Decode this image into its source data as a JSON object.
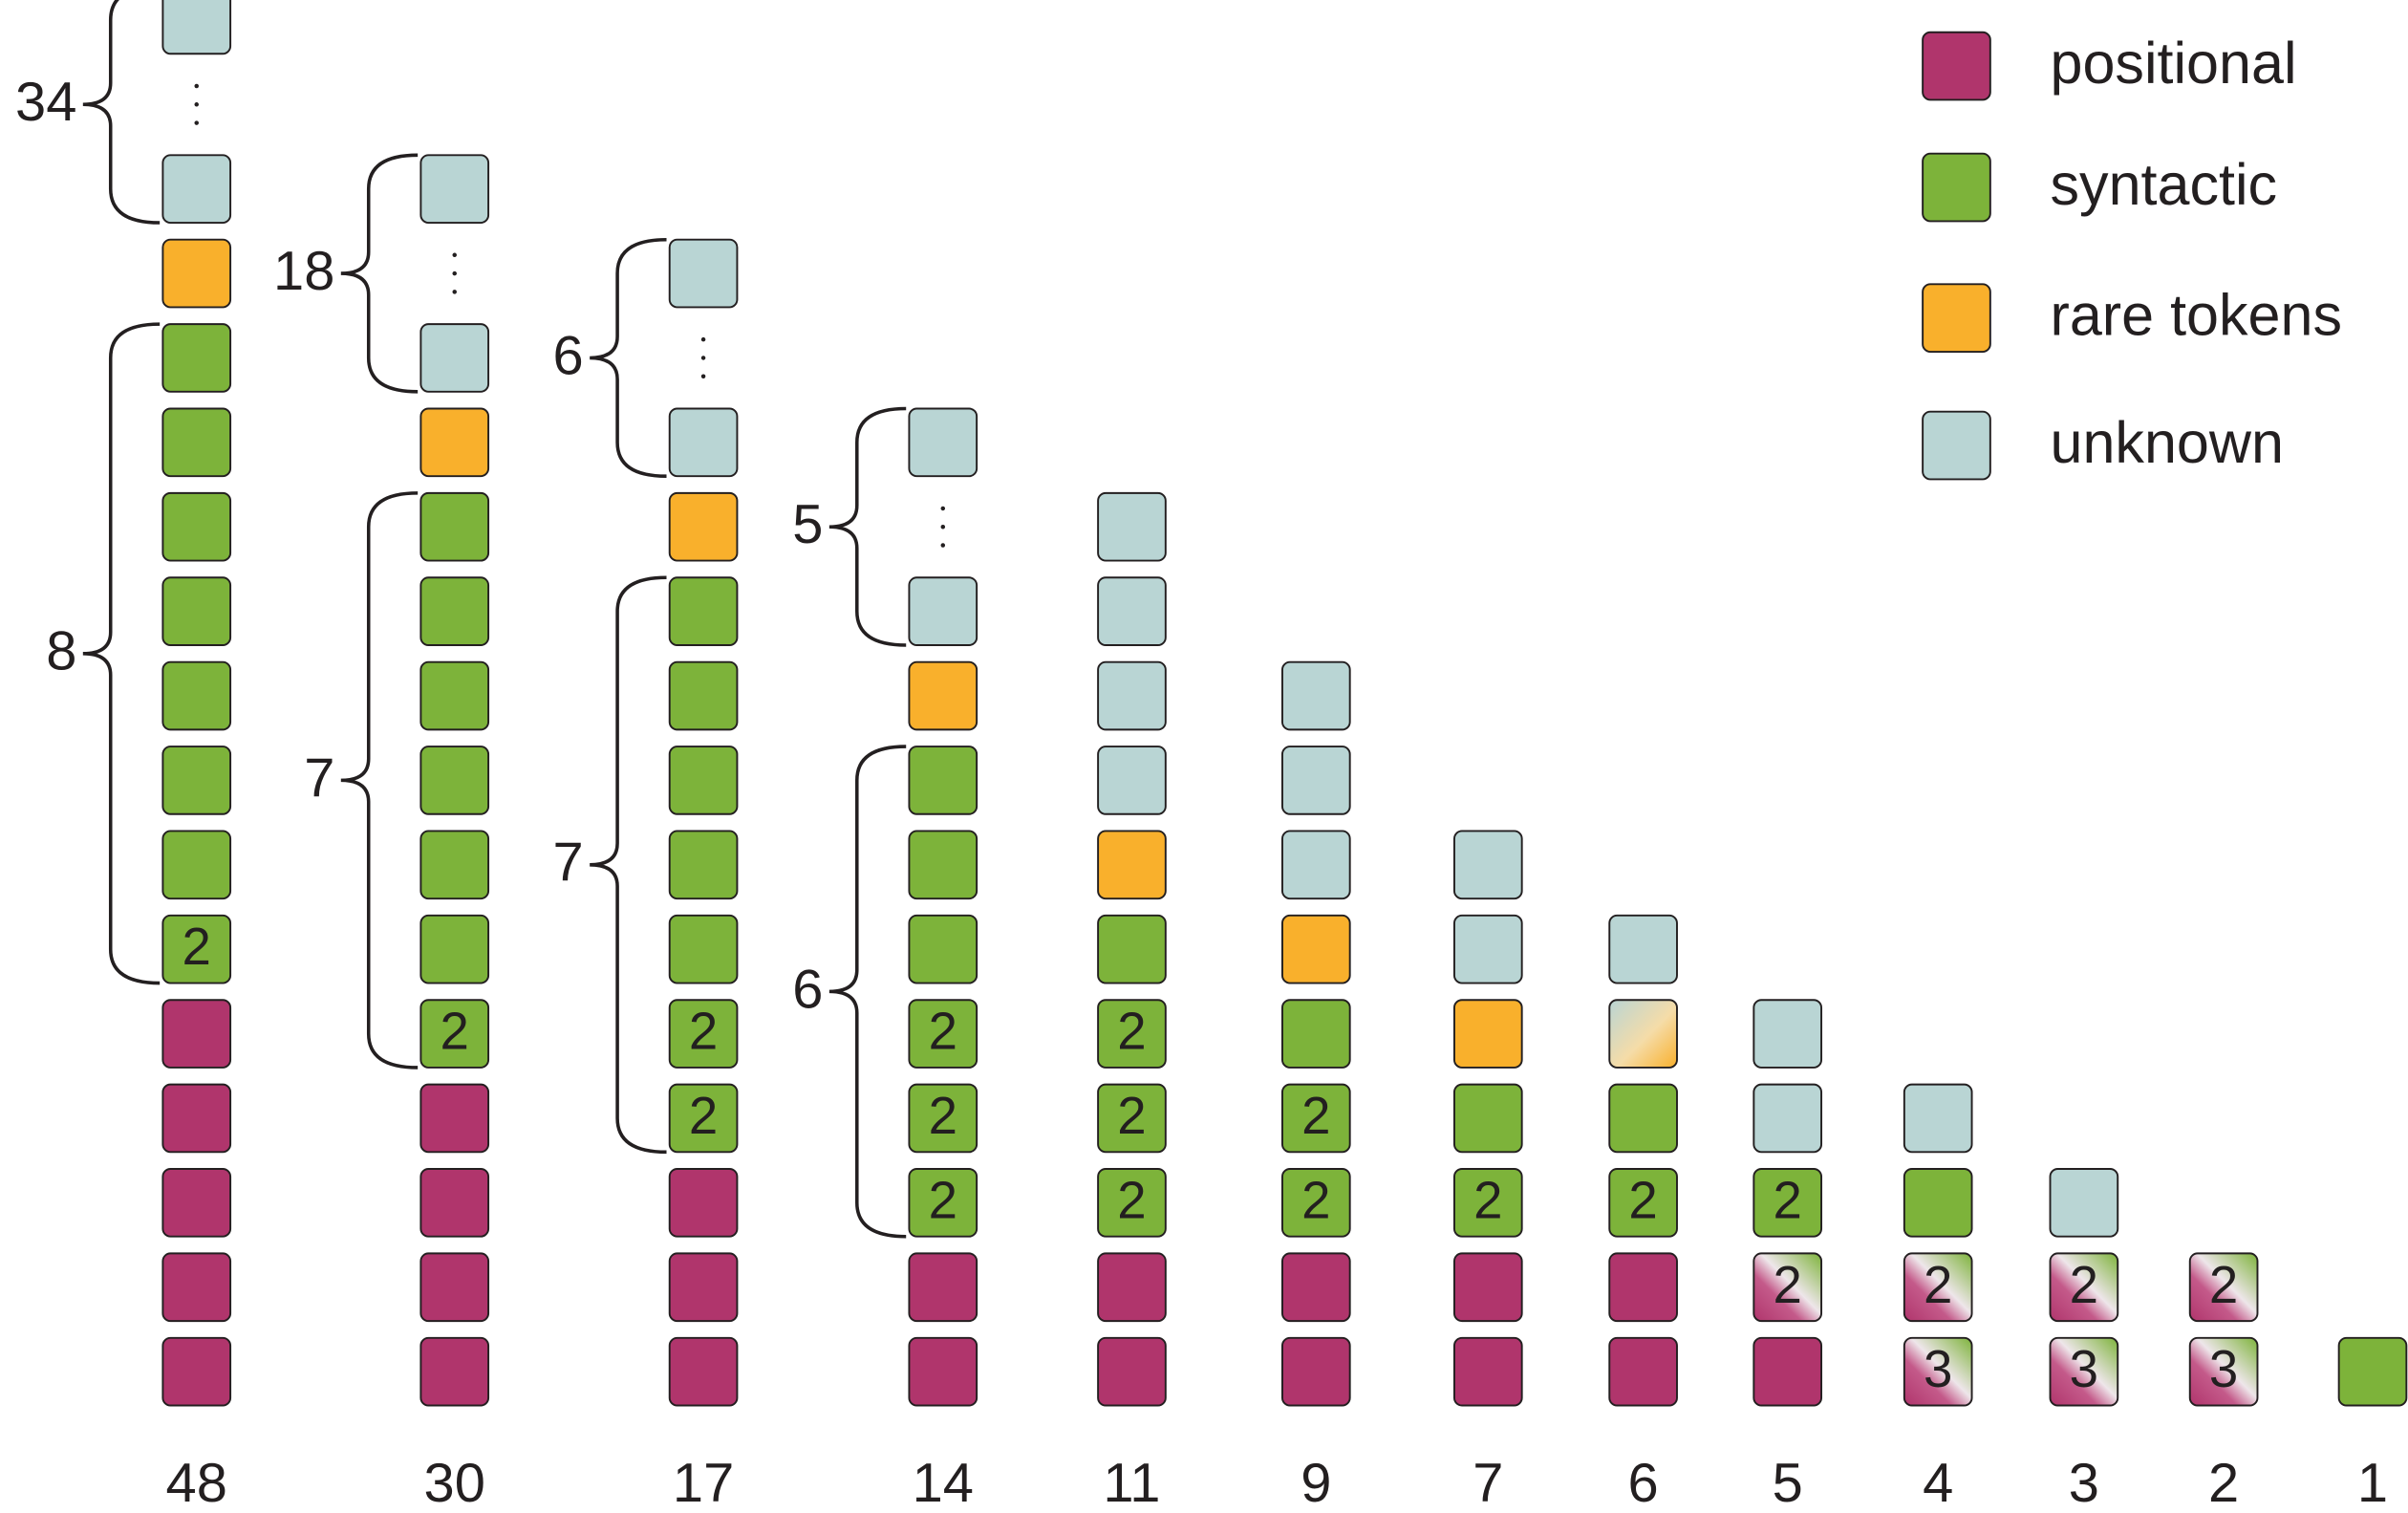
{
  "legend": [
    {
      "label": "positional",
      "type": "positional"
    },
    {
      "label": "syntactic",
      "type": "syntactic"
    },
    {
      "label": "rare tokens",
      "type": "rare"
    },
    {
      "label": "unknown",
      "type": "unknown"
    }
  ],
  "colors": {
    "positional": "#b0356c",
    "syntactic": "#7db33a",
    "rare": "#f9b02c",
    "unknown": "#b9d5d4"
  },
  "columns": [
    {
      "label": "48",
      "cells": [
        {
          "type": "positional"
        },
        {
          "type": "positional"
        },
        {
          "type": "positional"
        },
        {
          "type": "positional"
        },
        {
          "type": "positional"
        },
        {
          "type": "syntactic",
          "text": "2"
        },
        {
          "type": "syntactic"
        },
        {
          "type": "syntactic"
        },
        {
          "type": "syntactic"
        },
        {
          "type": "syntactic"
        },
        {
          "type": "syntactic"
        },
        {
          "type": "syntactic"
        },
        {
          "type": "syntactic"
        },
        {
          "type": "rare"
        },
        {
          "type": "unknown"
        },
        {
          "type": "ellipsis"
        },
        {
          "type": "unknown"
        }
      ],
      "braces": [
        {
          "label": "8",
          "from": 5,
          "to": 12
        },
        {
          "label": "34",
          "from": 14,
          "to": 16
        }
      ]
    },
    {
      "label": "30",
      "cells": [
        {
          "type": "positional"
        },
        {
          "type": "positional"
        },
        {
          "type": "positional"
        },
        {
          "type": "positional"
        },
        {
          "type": "syntactic",
          "text": "2"
        },
        {
          "type": "syntactic"
        },
        {
          "type": "syntactic"
        },
        {
          "type": "syntactic"
        },
        {
          "type": "syntactic"
        },
        {
          "type": "syntactic"
        },
        {
          "type": "syntactic"
        },
        {
          "type": "rare"
        },
        {
          "type": "unknown"
        },
        {
          "type": "ellipsis"
        },
        {
          "type": "unknown"
        }
      ],
      "braces": [
        {
          "label": "7",
          "from": 4,
          "to": 10
        },
        {
          "label": "18",
          "from": 12,
          "to": 14
        }
      ]
    },
    {
      "label": "17",
      "cells": [
        {
          "type": "positional"
        },
        {
          "type": "positional"
        },
        {
          "type": "positional"
        },
        {
          "type": "syntactic",
          "text": "2"
        },
        {
          "type": "syntactic",
          "text": "2"
        },
        {
          "type": "syntactic"
        },
        {
          "type": "syntactic"
        },
        {
          "type": "syntactic"
        },
        {
          "type": "syntactic"
        },
        {
          "type": "syntactic"
        },
        {
          "type": "rare"
        },
        {
          "type": "unknown"
        },
        {
          "type": "ellipsis"
        },
        {
          "type": "unknown"
        }
      ],
      "braces": [
        {
          "label": "7",
          "from": 3,
          "to": 9
        },
        {
          "label": "6",
          "from": 11,
          "to": 13
        }
      ]
    },
    {
      "label": "14",
      "cells": [
        {
          "type": "positional"
        },
        {
          "type": "positional"
        },
        {
          "type": "syntactic",
          "text": "2"
        },
        {
          "type": "syntactic",
          "text": "2"
        },
        {
          "type": "syntactic",
          "text": "2"
        },
        {
          "type": "syntactic"
        },
        {
          "type": "syntactic"
        },
        {
          "type": "syntactic"
        },
        {
          "type": "rare"
        },
        {
          "type": "unknown"
        },
        {
          "type": "ellipsis"
        },
        {
          "type": "unknown"
        }
      ],
      "braces": [
        {
          "label": "6",
          "from": 2,
          "to": 7
        },
        {
          "label": "5",
          "from": 9,
          "to": 11
        }
      ]
    },
    {
      "label": "11",
      "cells": [
        {
          "type": "positional"
        },
        {
          "type": "positional"
        },
        {
          "type": "syntactic",
          "text": "2"
        },
        {
          "type": "syntactic",
          "text": "2"
        },
        {
          "type": "syntactic",
          "text": "2"
        },
        {
          "type": "syntactic"
        },
        {
          "type": "rare"
        },
        {
          "type": "unknown"
        },
        {
          "type": "unknown"
        },
        {
          "type": "unknown"
        },
        {
          "type": "unknown"
        }
      ]
    },
    {
      "label": "9",
      "cells": [
        {
          "type": "positional"
        },
        {
          "type": "positional"
        },
        {
          "type": "syntactic",
          "text": "2"
        },
        {
          "type": "syntactic",
          "text": "2"
        },
        {
          "type": "syntactic"
        },
        {
          "type": "rare"
        },
        {
          "type": "unknown"
        },
        {
          "type": "unknown"
        },
        {
          "type": "unknown"
        }
      ]
    },
    {
      "label": "7",
      "cells": [
        {
          "type": "positional"
        },
        {
          "type": "positional"
        },
        {
          "type": "syntactic",
          "text": "2"
        },
        {
          "type": "syntactic"
        },
        {
          "type": "rare"
        },
        {
          "type": "unknown"
        },
        {
          "type": "unknown"
        }
      ]
    },
    {
      "label": "6",
      "cells": [
        {
          "type": "positional"
        },
        {
          "type": "positional"
        },
        {
          "type": "syntactic",
          "text": "2"
        },
        {
          "type": "syntactic"
        },
        {
          "type": "rare-unknown"
        },
        {
          "type": "unknown"
        }
      ]
    },
    {
      "label": "5",
      "cells": [
        {
          "type": "positional"
        },
        {
          "type": "positional-syntactic",
          "text": "2"
        },
        {
          "type": "syntactic",
          "text": "2"
        },
        {
          "type": "unknown"
        },
        {
          "type": "unknown"
        }
      ]
    },
    {
      "label": "4",
      "cells": [
        {
          "type": "positional-syntactic",
          "text": "3"
        },
        {
          "type": "positional-syntactic",
          "text": "2"
        },
        {
          "type": "syntactic"
        },
        {
          "type": "unknown"
        }
      ]
    },
    {
      "label": "3",
      "cells": [
        {
          "type": "positional-syntactic",
          "text": "3"
        },
        {
          "type": "positional-syntactic",
          "text": "2"
        },
        {
          "type": "unknown"
        }
      ]
    },
    {
      "label": "2",
      "cells": [
        {
          "type": "positional-syntactic",
          "text": "3"
        },
        {
          "type": "positional-syntactic",
          "text": "2"
        }
      ]
    },
    {
      "label": "1",
      "cells": [
        {
          "type": "syntactic"
        }
      ]
    }
  ]
}
